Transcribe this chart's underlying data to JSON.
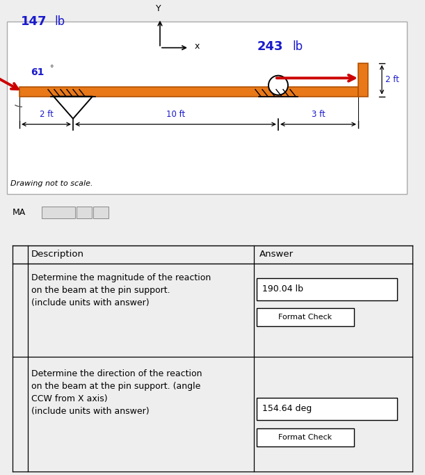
{
  "bg_color": "#eeeeee",
  "diagram_bg": "#ffffff",
  "beam_color": "#e87818",
  "beam_edge_color": "#b05000",
  "force_color_red": "#cc0000",
  "force_color_blue": "#1a1acc",
  "title_147_bold": "147",
  "title_147_normal": "lb",
  "title_243": "243",
  "title_243_unit": "lb",
  "angle_label": "61",
  "dim_2ft_horiz": "2 ft",
  "dim_10ft": "10 ft",
  "dim_3ft": "3 ft",
  "dim_2ft_vert": "2 ft",
  "drawing_note": "Drawing not to scale.",
  "ans1": "190.04 lb",
  "check1": "Format Check",
  "ans2": "154.64 deg",
  "check2": "Format Check",
  "col_desc": "Description",
  "col_ans": "Answer",
  "label_MA": "MA",
  "desc1_line1": "Determine the magnitude of the reaction",
  "desc1_line2": "on the beam at the pin support.",
  "desc1_line3": "(include units with answer)",
  "desc2_line1": "Determine the direction of the reaction",
  "desc2_line2": "on the beam at the pin support. (angle",
  "desc2_line3": "CCW from X axis)",
  "desc2_line4": "(include units with answer)"
}
